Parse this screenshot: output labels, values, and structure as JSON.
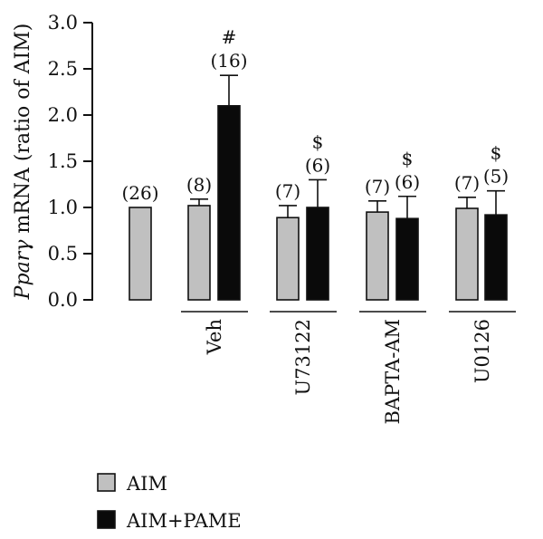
{
  "chart_data": {
    "type": "bar",
    "ylabel": {
      "gene": "Pparγ",
      "rest": " mRNA (ratio of AIM)"
    },
    "ylim": [
      0,
      3.0
    ],
    "yticks": [
      "0.0",
      "0.5",
      "1.0",
      "1.5",
      "2.0",
      "2.5",
      "3.0"
    ],
    "grid": false,
    "legend_position": "bottom-left",
    "series": [
      {
        "name": "AIM",
        "color": "#c0c0c0"
      },
      {
        "name": "AIM+PAME",
        "color": "#0a0a0a"
      }
    ],
    "groups": [
      {
        "label": "",
        "bars": [
          {
            "series": 0,
            "value": 1.0,
            "error": 0.0,
            "n": "(26)",
            "sig": ""
          }
        ]
      },
      {
        "label": "Veh",
        "bars": [
          {
            "series": 0,
            "value": 1.02,
            "error": 0.07,
            "n": "(8)",
            "sig": ""
          },
          {
            "series": 1,
            "value": 2.1,
            "error": 0.33,
            "n": "(16)",
            "sig": "#"
          }
        ]
      },
      {
        "label": "U73122",
        "bars": [
          {
            "series": 0,
            "value": 0.89,
            "error": 0.13,
            "n": "(7)",
            "sig": ""
          },
          {
            "series": 1,
            "value": 1.0,
            "error": 0.3,
            "n": "(6)",
            "sig": "$"
          }
        ]
      },
      {
        "label": "BAPTA-AM",
        "bars": [
          {
            "series": 0,
            "value": 0.95,
            "error": 0.12,
            "n": "(7)",
            "sig": ""
          },
          {
            "series": 1,
            "value": 0.88,
            "error": 0.24,
            "n": "(6)",
            "sig": "$"
          }
        ]
      },
      {
        "label": "U0126",
        "bars": [
          {
            "series": 0,
            "value": 0.99,
            "error": 0.12,
            "n": "(7)",
            "sig": ""
          },
          {
            "series": 1,
            "value": 0.92,
            "error": 0.26,
            "n": "(5)",
            "sig": "$"
          }
        ]
      }
    ]
  }
}
